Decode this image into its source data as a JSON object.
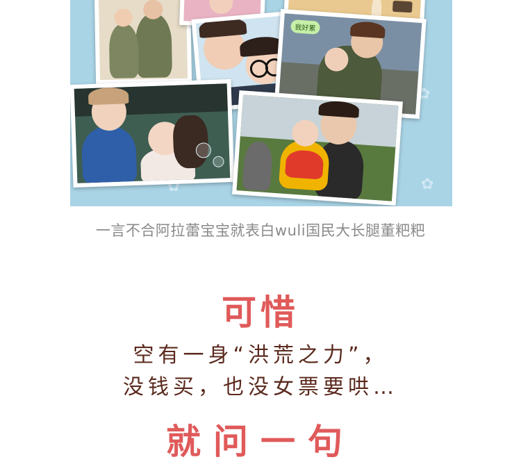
{
  "caption": "一言不合阿拉蕾宝宝就表白wuli国民大长腿董粑粑",
  "headline1": "可惜",
  "line1": "空有一身“洪荒之力”，",
  "line2": "没钱买，也没女票要哄…",
  "headline2": "就问一句",
  "sticker_text": "我好累",
  "colors": {
    "collage_bg": "#a9d4e6",
    "headline": "#e05a5a",
    "body_text": "#5b2a1e",
    "caption_text": "#8a8a8a"
  }
}
